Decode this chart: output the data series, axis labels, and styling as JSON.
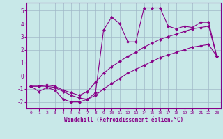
{
  "xlabel": "Windchill (Refroidissement éolien,°C)",
  "background_color": "#c8e8e8",
  "grid_color": "#a0b8c8",
  "line_color": "#880088",
  "xlim": [
    -0.5,
    23.5
  ],
  "ylim": [
    -2.5,
    5.6
  ],
  "xticks": [
    0,
    1,
    2,
    3,
    4,
    5,
    6,
    7,
    8,
    9,
    10,
    11,
    12,
    13,
    14,
    15,
    16,
    17,
    18,
    19,
    20,
    21,
    22,
    23
  ],
  "yticks": [
    -2,
    -1,
    0,
    1,
    2,
    3,
    4,
    5
  ],
  "x": [
    0,
    1,
    2,
    3,
    4,
    5,
    6,
    7,
    8,
    9,
    10,
    11,
    12,
    13,
    14,
    15,
    16,
    17,
    18,
    19,
    20,
    21,
    22,
    23
  ],
  "y_upper": [
    -0.8,
    -1.2,
    -0.9,
    -1.1,
    -1.8,
    -2.0,
    -2.0,
    -1.8,
    -1.3,
    3.5,
    4.5,
    4.0,
    2.6,
    2.6,
    5.2,
    5.2,
    5.2,
    3.8,
    3.6,
    3.8,
    3.7,
    4.1,
    4.1,
    1.5
  ],
  "y_mid": [
    -0.8,
    -0.8,
    -0.7,
    -0.8,
    -1.1,
    -1.3,
    -1.5,
    -1.2,
    -0.5,
    0.2,
    0.7,
    1.1,
    1.5,
    1.8,
    2.2,
    2.5,
    2.8,
    3.0,
    3.2,
    3.4,
    3.6,
    3.7,
    3.8,
    1.5
  ],
  "y_lower": [
    -0.8,
    -0.8,
    -0.8,
    -0.9,
    -1.2,
    -1.5,
    -1.7,
    -1.8,
    -1.5,
    -1.0,
    -0.6,
    -0.2,
    0.2,
    0.5,
    0.8,
    1.1,
    1.4,
    1.6,
    1.8,
    2.0,
    2.2,
    2.3,
    2.4,
    1.5
  ]
}
